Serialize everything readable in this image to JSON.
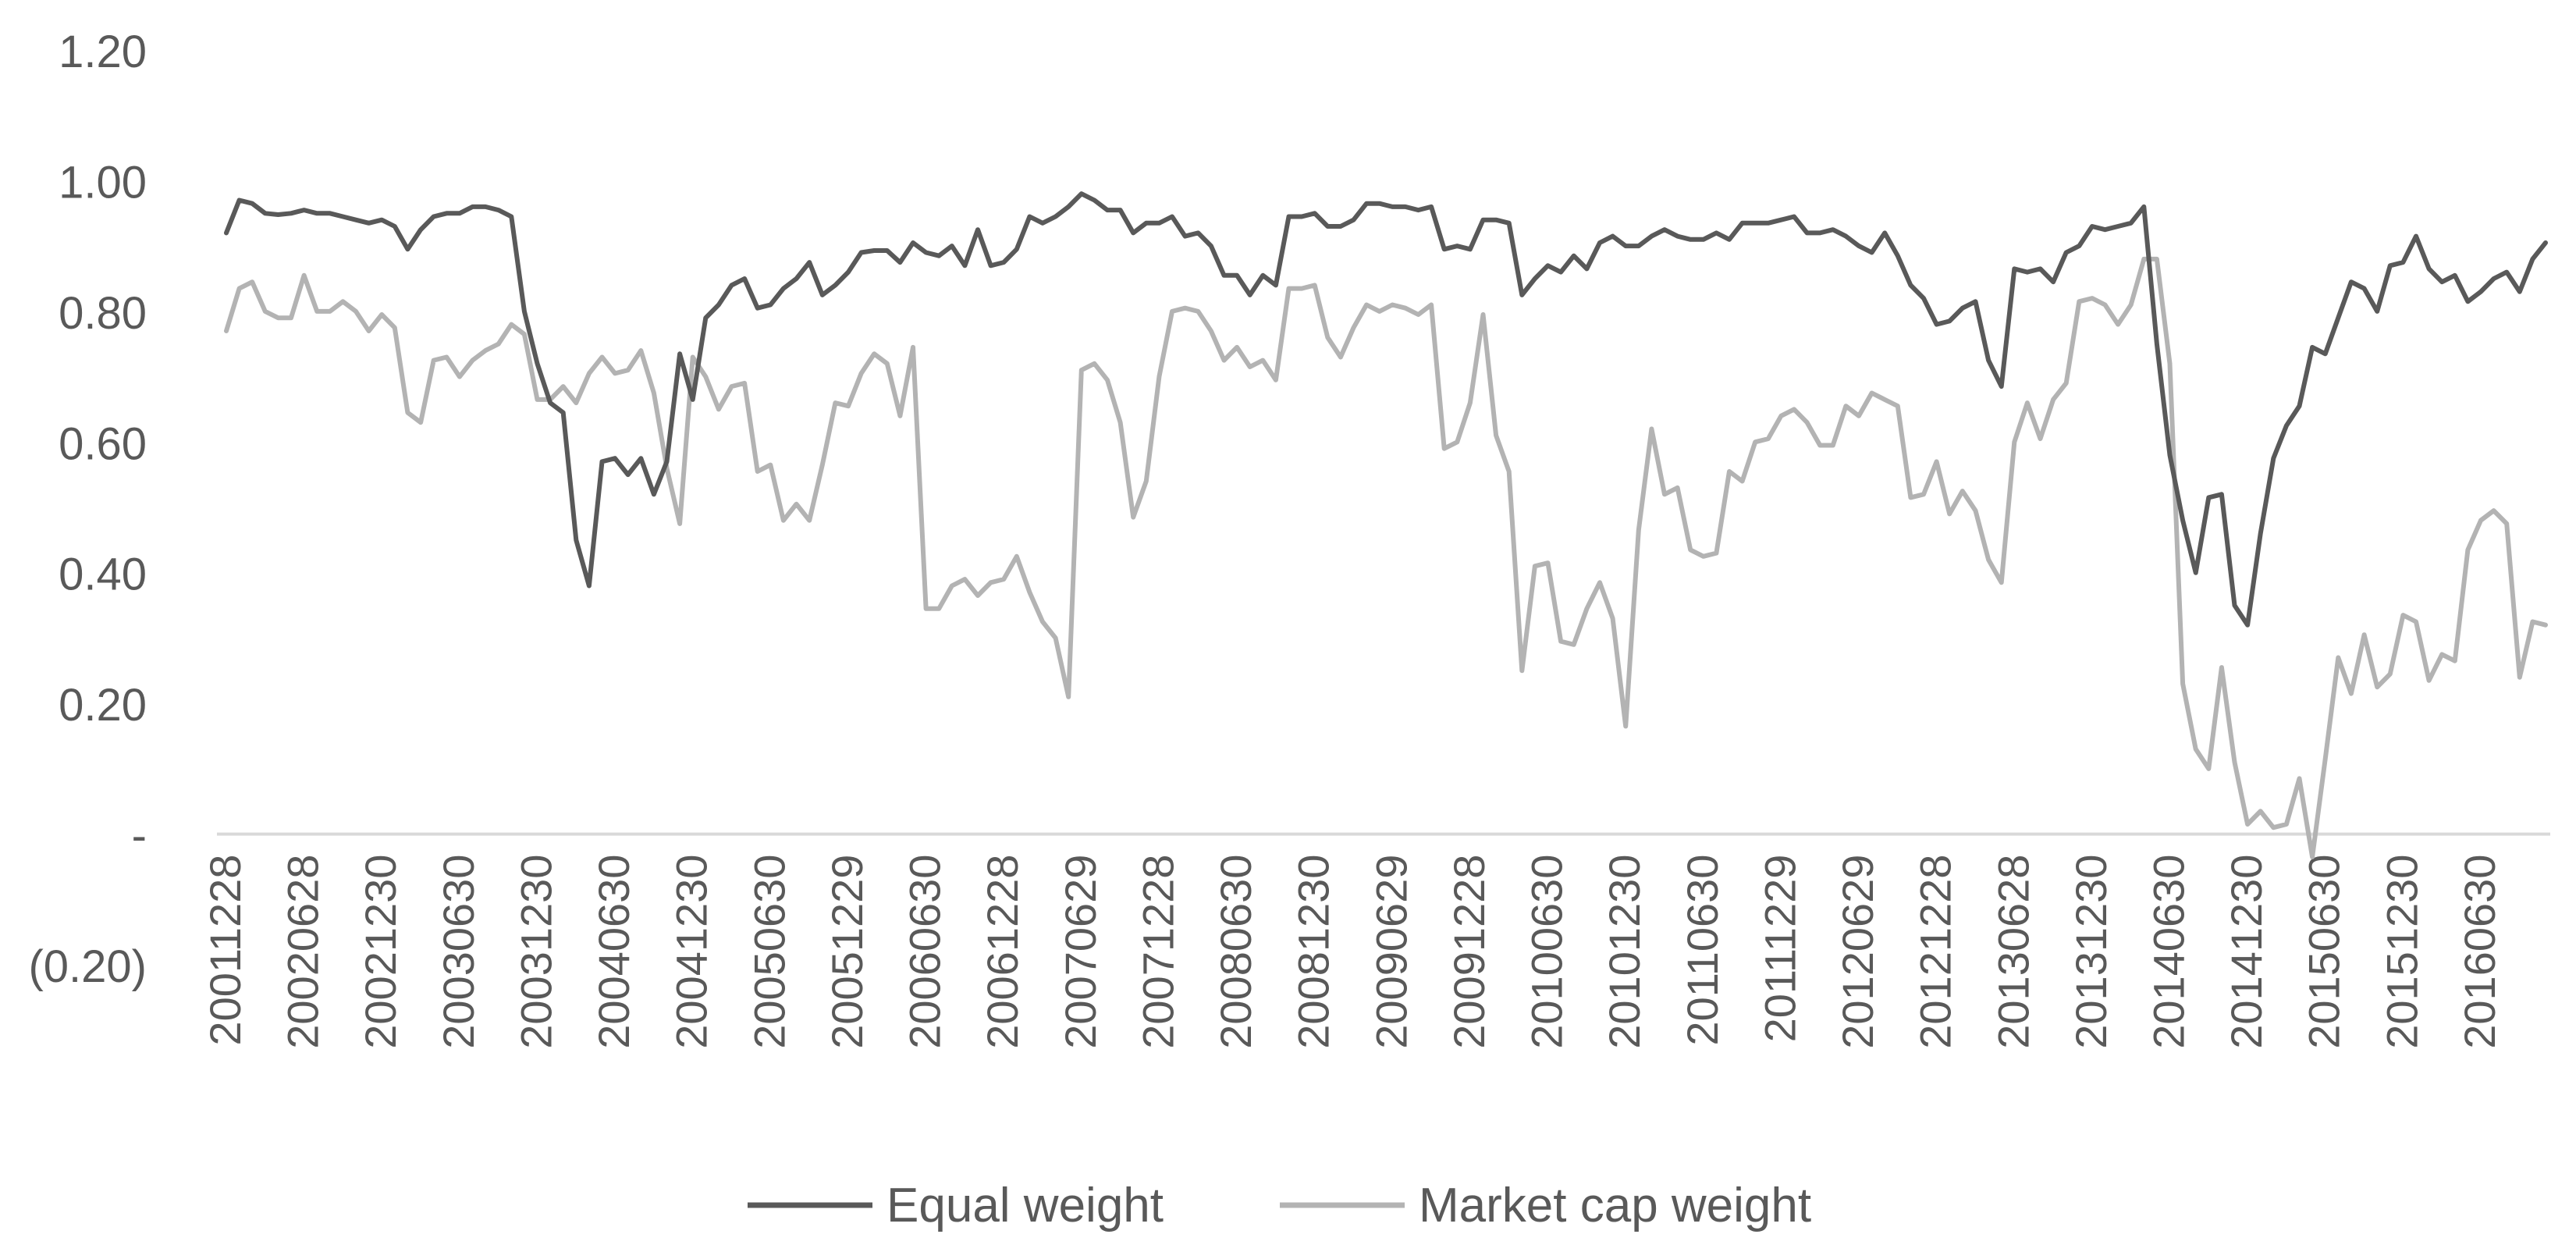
{
  "chart_data": {
    "type": "line",
    "title": "",
    "xlabel": "",
    "ylabel": "",
    "ylim": [
      -0.2,
      1.2
    ],
    "y_ticks": [
      {
        "value": 1.2,
        "label": "1.20"
      },
      {
        "value": 1.0,
        "label": "1.00"
      },
      {
        "value": 0.8,
        "label": "0.80"
      },
      {
        "value": 0.6,
        "label": "0.60"
      },
      {
        "value": 0.4,
        "label": "0.40"
      },
      {
        "value": 0.2,
        "label": "0.20"
      },
      {
        "value": 0.0,
        "label": "-"
      },
      {
        "value": -0.2,
        "label": "(0.20)"
      }
    ],
    "x_tick_labels": [
      "20011228",
      "20020628",
      "20021230",
      "20030630",
      "20031230",
      "20040630",
      "20041230",
      "20050630",
      "20051229",
      "20060630",
      "20061228",
      "20070629",
      "20071228",
      "20080630",
      "20081230",
      "20090629",
      "20091228",
      "20100630",
      "20101230",
      "20110630",
      "20111229",
      "20120629",
      "20121228",
      "20130628",
      "20131230",
      "20140630",
      "20141230",
      "20150630",
      "20151230",
      "20160630"
    ],
    "points_per_label": 6,
    "grid": false,
    "legend_position": "bottom",
    "colors": {
      "axis": "#d9d9d9",
      "text": "#595959"
    },
    "series": [
      {
        "name": "Equal weight",
        "color": "#595959",
        "values": [
          0.92,
          0.97,
          0.965,
          0.95,
          0.948,
          0.95,
          0.955,
          0.95,
          0.95,
          0.945,
          0.94,
          0.935,
          0.94,
          0.93,
          0.895,
          0.925,
          0.945,
          0.95,
          0.95,
          0.96,
          0.96,
          0.955,
          0.945,
          0.8,
          0.72,
          0.66,
          0.645,
          0.45,
          0.38,
          0.57,
          0.575,
          0.55,
          0.575,
          0.52,
          0.57,
          0.735,
          0.665,
          0.79,
          0.81,
          0.84,
          0.85,
          0.805,
          0.81,
          0.835,
          0.85,
          0.875,
          0.825,
          0.84,
          0.86,
          0.89,
          0.893,
          0.893,
          0.875,
          0.905,
          0.89,
          0.885,
          0.9,
          0.87,
          0.925,
          0.87,
          0.875,
          0.895,
          0.945,
          0.935,
          0.945,
          0.96,
          0.98,
          0.97,
          0.955,
          0.955,
          0.92,
          0.935,
          0.935,
          0.945,
          0.915,
          0.92,
          0.9,
          0.855,
          0.855,
          0.825,
          0.855,
          0.84,
          0.945,
          0.945,
          0.95,
          0.93,
          0.93,
          0.94,
          0.965,
          0.965,
          0.96,
          0.96,
          0.955,
          0.96,
          0.895,
          0.9,
          0.895,
          0.94,
          0.94,
          0.935,
          0.825,
          0.85,
          0.87,
          0.86,
          0.885,
          0.865,
          0.905,
          0.915,
          0.9,
          0.9,
          0.915,
          0.925,
          0.915,
          0.91,
          0.91,
          0.92,
          0.91,
          0.935,
          0.935,
          0.935,
          0.94,
          0.945,
          0.92,
          0.92,
          0.925,
          0.915,
          0.9,
          0.89,
          0.92,
          0.885,
          0.84,
          0.82,
          0.78,
          0.785,
          0.805,
          0.815,
          0.725,
          0.685,
          0.865,
          0.86,
          0.865,
          0.845,
          0.89,
          0.9,
          0.93,
          0.925,
          0.93,
          0.935,
          0.96,
          0.75,
          0.58,
          0.48,
          0.4,
          0.515,
          0.52,
          0.35,
          0.32,
          0.46,
          0.575,
          0.625,
          0.655,
          0.745,
          0.735,
          0.79,
          0.845,
          0.835,
          0.8,
          0.87,
          0.875,
          0.915,
          0.865,
          0.845,
          0.855,
          0.815,
          0.83,
          0.85,
          0.86,
          0.83,
          0.88,
          0.905
        ]
      },
      {
        "name": "Market cap weight",
        "color": "#b3b3b3",
        "values": [
          0.77,
          0.835,
          0.845,
          0.8,
          0.79,
          0.79,
          0.855,
          0.8,
          0.8,
          0.815,
          0.8,
          0.77,
          0.795,
          0.775,
          0.645,
          0.63,
          0.725,
          0.73,
          0.7,
          0.725,
          0.74,
          0.75,
          0.78,
          0.765,
          0.665,
          0.665,
          0.685,
          0.66,
          0.705,
          0.73,
          0.705,
          0.71,
          0.74,
          0.675,
          0.56,
          0.475,
          0.73,
          0.7,
          0.65,
          0.685,
          0.69,
          0.555,
          0.565,
          0.48,
          0.505,
          0.48,
          0.565,
          0.66,
          0.655,
          0.705,
          0.735,
          0.72,
          0.64,
          0.745,
          0.345,
          0.345,
          0.38,
          0.39,
          0.365,
          0.385,
          0.39,
          0.425,
          0.37,
          0.325,
          0.3,
          0.21,
          0.71,
          0.72,
          0.695,
          0.63,
          0.485,
          0.54,
          0.7,
          0.8,
          0.805,
          0.8,
          0.77,
          0.725,
          0.745,
          0.715,
          0.725,
          0.695,
          0.835,
          0.835,
          0.84,
          0.76,
          0.73,
          0.775,
          0.81,
          0.8,
          0.81,
          0.805,
          0.795,
          0.81,
          0.59,
          0.6,
          0.66,
          0.795,
          0.61,
          0.555,
          0.25,
          0.41,
          0.415,
          0.295,
          0.29,
          0.345,
          0.385,
          0.33,
          0.165,
          0.465,
          0.62,
          0.52,
          0.53,
          0.435,
          0.425,
          0.43,
          0.555,
          0.54,
          0.6,
          0.605,
          0.64,
          0.65,
          0.63,
          0.595,
          0.595,
          0.655,
          0.64,
          0.675,
          0.665,
          0.655,
          0.515,
          0.52,
          0.57,
          0.49,
          0.525,
          0.495,
          0.42,
          0.385,
          0.6,
          0.66,
          0.605,
          0.665,
          0.69,
          0.815,
          0.82,
          0.81,
          0.78,
          0.81,
          0.88,
          0.88,
          0.72,
          0.23,
          0.13,
          0.1,
          0.255,
          0.11,
          0.015,
          0.035,
          0.01,
          0.015,
          0.085,
          -0.035,
          0.115,
          0.27,
          0.215,
          0.305,
          0.225,
          0.245,
          0.335,
          0.325,
          0.235,
          0.275,
          0.265,
          0.435,
          0.48,
          0.495,
          0.475,
          0.24,
          0.325,
          0.32
        ]
      }
    ]
  }
}
